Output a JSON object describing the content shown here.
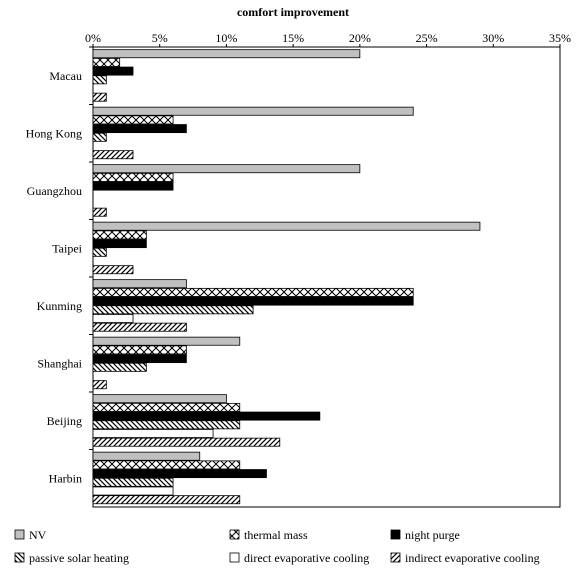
{
  "chart_data": {
    "type": "bar",
    "orientation": "horizontal",
    "title": "comfort improvement",
    "xlabel": "",
    "ylabel": "",
    "xlim": [
      0,
      35
    ],
    "x_ticks": [
      "0%",
      "5%",
      "10%",
      "15%",
      "20%",
      "25%",
      "30%",
      "35%"
    ],
    "grid": false,
    "legend_position": "bottom",
    "categories": [
      "Macau",
      "Hong Kong",
      "Guangzhou",
      "Taipei",
      "Kunming",
      "Shanghai",
      "Beijing",
      "Harbin"
    ],
    "series": [
      {
        "name": "NV",
        "pattern": "grey",
        "values": [
          20,
          24,
          20,
          29,
          7,
          11,
          10,
          8
        ]
      },
      {
        "name": "thermal mass",
        "pattern": "crosshatch",
        "values": [
          2,
          6,
          6,
          4,
          24,
          7,
          11,
          11
        ]
      },
      {
        "name": "night purge",
        "pattern": "black",
        "values": [
          3,
          7,
          6,
          4,
          24,
          7,
          17,
          13
        ]
      },
      {
        "name": "passive solar heating",
        "pattern": "backdiag",
        "values": [
          1,
          1,
          0,
          1,
          12,
          4,
          11,
          6
        ]
      },
      {
        "name": "direct evaporative cooling",
        "pattern": "white",
        "values": [
          0,
          0,
          0,
          0,
          3,
          0,
          9,
          6
        ]
      },
      {
        "name": "indirect evaporative cooling",
        "pattern": "fwddiag",
        "values": [
          1,
          3,
          1,
          3,
          7,
          1,
          14,
          11
        ]
      }
    ],
    "legend_order": [
      0,
      1,
      2,
      3,
      4,
      5
    ]
  }
}
